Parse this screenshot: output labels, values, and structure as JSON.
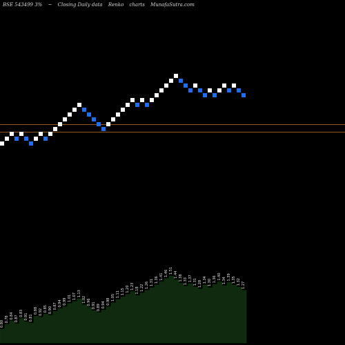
{
  "header": {
    "symbol": "BSE 543499 3%",
    "sep": "~",
    "desc": "Closing Daily data",
    "type_label": "Renko",
    "charts_word": "charts",
    "brand": "MunafaSutra.com"
  },
  "colors": {
    "background": "#000000",
    "up_brick": "#ffffff",
    "down_brick": "#1e6ff0",
    "level_line": "#c8782a",
    "volume_fill": "#0f2a0f",
    "volume_stroke": "#0c3a0c"
  },
  "chart_data": {
    "type": "renko",
    "bricks": [
      {
        "dir": "up",
        "level": 0
      },
      {
        "dir": "up",
        "level": 1
      },
      {
        "dir": "up",
        "level": 2
      },
      {
        "dir": "down",
        "level": 1
      },
      {
        "dir": "up",
        "level": 2
      },
      {
        "dir": "down",
        "level": 1
      },
      {
        "dir": "down",
        "level": 0
      },
      {
        "dir": "up",
        "level": 1
      },
      {
        "dir": "up",
        "level": 2
      },
      {
        "dir": "down",
        "level": 1
      },
      {
        "dir": "up",
        "level": 2
      },
      {
        "dir": "up",
        "level": 3
      },
      {
        "dir": "up",
        "level": 4
      },
      {
        "dir": "up",
        "level": 5
      },
      {
        "dir": "up",
        "level": 6
      },
      {
        "dir": "up",
        "level": 7
      },
      {
        "dir": "up",
        "level": 8
      },
      {
        "dir": "down",
        "level": 7
      },
      {
        "dir": "down",
        "level": 6
      },
      {
        "dir": "down",
        "level": 5
      },
      {
        "dir": "down",
        "level": 4
      },
      {
        "dir": "down",
        "level": 3
      },
      {
        "dir": "up",
        "level": 4
      },
      {
        "dir": "up",
        "level": 5
      },
      {
        "dir": "up",
        "level": 6
      },
      {
        "dir": "up",
        "level": 7
      },
      {
        "dir": "up",
        "level": 8
      },
      {
        "dir": "up",
        "level": 9
      },
      {
        "dir": "down",
        "level": 8
      },
      {
        "dir": "up",
        "level": 9
      },
      {
        "dir": "down",
        "level": 8
      },
      {
        "dir": "up",
        "level": 9
      },
      {
        "dir": "up",
        "level": 10
      },
      {
        "dir": "up",
        "level": 11
      },
      {
        "dir": "up",
        "level": 12
      },
      {
        "dir": "up",
        "level": 13
      },
      {
        "dir": "up",
        "level": 14
      },
      {
        "dir": "down",
        "level": 13
      },
      {
        "dir": "down",
        "level": 12
      },
      {
        "dir": "down",
        "level": 11
      },
      {
        "dir": "up",
        "level": 12
      },
      {
        "dir": "down",
        "level": 11
      },
      {
        "dir": "down",
        "level": 10
      },
      {
        "dir": "up",
        "level": 11
      },
      {
        "dir": "down",
        "level": 10
      },
      {
        "dir": "up",
        "level": 11
      },
      {
        "dir": "up",
        "level": 12
      },
      {
        "dir": "down",
        "level": 11
      },
      {
        "dir": "up",
        "level": 12
      },
      {
        "dir": "down",
        "level": 11
      },
      {
        "dir": "down",
        "level": 10
      }
    ],
    "volume_values": [
      0.21,
      0.28,
      0.33,
      0.29,
      0.37,
      0.32,
      0.3,
      0.41,
      0.39,
      0.44,
      0.42,
      0.48,
      0.52,
      0.55,
      0.6,
      0.63,
      0.67,
      0.58,
      0.54,
      0.49,
      0.46,
      0.5,
      0.55,
      0.61,
      0.66,
      0.7,
      0.74,
      0.78,
      0.72,
      0.76,
      0.8,
      0.84,
      0.88,
      0.93,
      0.98,
      1.02,
      0.96,
      0.91,
      0.86,
      0.9,
      0.85,
      0.82,
      0.88,
      0.84,
      0.89,
      0.93,
      0.87,
      0.92,
      0.88,
      0.85,
      0.8
    ],
    "volume_labels": [
      "0.80",
      "0.78",
      "0.84",
      "0.87",
      "0.83",
      "0.91",
      "0.81",
      "0.88",
      "0.92",
      "0.85",
      "0.90",
      "0.87",
      "0.94",
      "0.99",
      "1.01",
      "1.07",
      "1.13",
      "1.02",
      "0.96",
      "0.91",
      "0.89",
      "0.94",
      "0.98",
      "1.05",
      "1.11",
      "1.15",
      "1.20",
      "1.23",
      "1.18",
      "1.22",
      "1.26",
      "1.31",
      "1.36",
      "1.41",
      "1.46",
      "1.51",
      "1.44",
      "1.38",
      "1.33",
      "1.37",
      "1.31",
      "1.28",
      "1.34",
      "1.30",
      "1.36",
      "1.40",
      "1.34",
      "1.39",
      "1.35",
      "1.32",
      "1.27"
    ]
  }
}
